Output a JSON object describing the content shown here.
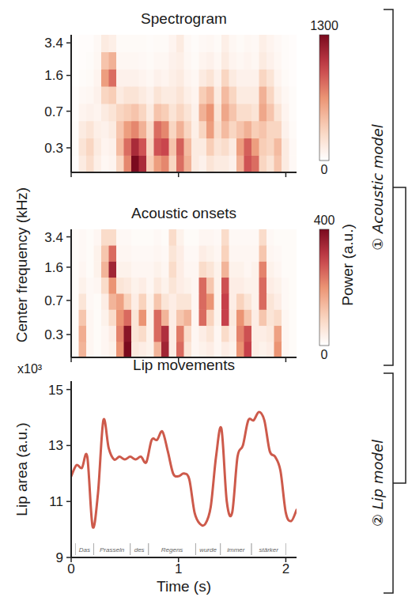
{
  "chart_data": [
    {
      "type": "heatmap",
      "title": "Spectrogram",
      "xlim": [
        0,
        2.1
      ],
      "xticks": [
        0,
        1,
        2
      ],
      "ylim": [
        0.17,
        4.1
      ],
      "yticks": [
        0.3,
        0.7,
        1.6,
        3.4
      ],
      "log": "y",
      "tick_labels": "y",
      "x_edges": [
        0,
        0.07,
        0.14,
        0.21,
        0.28,
        0.35,
        0.42,
        0.49,
        0.56,
        0.63,
        0.7,
        0.77,
        0.84,
        0.91,
        0.98,
        1.05,
        1.12,
        1.19,
        1.26,
        1.33,
        1.4,
        1.47,
        1.54,
        1.61,
        1.68,
        1.75,
        1.82,
        1.89,
        1.96,
        2.03,
        2.1
      ],
      "y_edges": [
        0.17,
        0.253,
        0.377,
        0.562,
        0.837,
        1.25,
        1.86,
        2.77,
        4.1
      ],
      "cells": [
        [
          20,
          150,
          250,
          120,
          60,
          80,
          300,
          700,
          1300,
          1100,
          350,
          600,
          700,
          300,
          800,
          500,
          150,
          100,
          200,
          150,
          150,
          100,
          500,
          900,
          800,
          300,
          200,
          400,
          150,
          50
        ],
        [
          30,
          200,
          300,
          150,
          80,
          100,
          450,
          800,
          1100,
          900,
          300,
          900,
          950,
          400,
          850,
          450,
          150,
          150,
          350,
          200,
          250,
          150,
          600,
          850,
          600,
          350,
          300,
          450,
          150,
          50
        ],
        [
          30,
          150,
          200,
          120,
          100,
          150,
          400,
          600,
          700,
          500,
          250,
          800,
          700,
          300,
          500,
          300,
          120,
          300,
          600,
          250,
          450,
          300,
          400,
          500,
          350,
          400,
          300,
          300,
          100,
          40
        ],
        [
          20,
          80,
          100,
          80,
          150,
          200,
          300,
          350,
          400,
          300,
          150,
          400,
          350,
          200,
          300,
          200,
          100,
          500,
          650,
          200,
          550,
          400,
          250,
          250,
          200,
          550,
          400,
          200,
          80,
          30
        ],
        [
          20,
          50,
          60,
          100,
          300,
          350,
          150,
          200,
          200,
          150,
          100,
          200,
          150,
          150,
          200,
          120,
          80,
          350,
          450,
          150,
          450,
          300,
          150,
          150,
          150,
          500,
          300,
          120,
          60,
          30
        ],
        [
          10,
          30,
          40,
          80,
          600,
          800,
          100,
          100,
          100,
          80,
          60,
          100,
          80,
          120,
          150,
          80,
          60,
          150,
          200,
          100,
          300,
          150,
          100,
          100,
          100,
          300,
          200,
          80,
          40,
          20
        ],
        [
          10,
          20,
          30,
          60,
          400,
          500,
          60,
          60,
          60,
          50,
          40,
          60,
          60,
          100,
          120,
          60,
          40,
          80,
          100,
          60,
          150,
          80,
          60,
          80,
          60,
          150,
          100,
          60,
          30,
          20
        ],
        [
          10,
          20,
          20,
          50,
          150,
          120,
          40,
          40,
          40,
          40,
          30,
          40,
          40,
          80,
          150,
          50,
          30,
          50,
          60,
          40,
          120,
          60,
          40,
          60,
          50,
          120,
          80,
          50,
          30,
          20
        ]
      ],
      "colorbar": {
        "range": [
          0,
          1300
        ],
        "ticks": [
          0,
          1300
        ]
      }
    },
    {
      "type": "heatmap",
      "title": "Acoustic onsets",
      "ylabel": "Center frequency (kHz)",
      "xlim": [
        0,
        2.1
      ],
      "xticks": [
        0,
        1,
        2
      ],
      "ylim": [
        0.17,
        4.1
      ],
      "yticks": [
        0.3,
        0.7,
        1.6,
        3.4
      ],
      "log": "y",
      "tick_labels": "y",
      "x_edges": [
        0,
        0.07,
        0.14,
        0.21,
        0.28,
        0.35,
        0.42,
        0.49,
        0.56,
        0.63,
        0.7,
        0.77,
        0.84,
        0.91,
        0.98,
        1.05,
        1.12,
        1.19,
        1.26,
        1.33,
        1.4,
        1.47,
        1.54,
        1.61,
        1.68,
        1.75,
        1.82,
        1.89,
        1.96,
        2.03,
        2.1
      ],
      "y_edges": [
        0.17,
        0.253,
        0.377,
        0.562,
        0.837,
        1.25,
        1.86,
        2.77,
        4.1
      ],
      "cells": [
        [
          10,
          150,
          20,
          10,
          20,
          30,
          200,
          400,
          50,
          40,
          30,
          150,
          350,
          40,
          250,
          60,
          20,
          30,
          40,
          20,
          40,
          30,
          200,
          300,
          40,
          30,
          40,
          200,
          20,
          10
        ],
        [
          10,
          160,
          20,
          10,
          20,
          40,
          220,
          380,
          60,
          80,
          30,
          250,
          330,
          40,
          230,
          80,
          20,
          40,
          60,
          20,
          80,
          40,
          220,
          280,
          40,
          40,
          50,
          180,
          20,
          10
        ],
        [
          10,
          120,
          20,
          10,
          30,
          80,
          200,
          250,
          60,
          200,
          30,
          250,
          150,
          40,
          120,
          150,
          20,
          250,
          100,
          30,
          300,
          50,
          200,
          120,
          40,
          120,
          60,
          80,
          20,
          10
        ],
        [
          10,
          60,
          15,
          10,
          40,
          150,
          180,
          100,
          40,
          100,
          30,
          120,
          60,
          40,
          60,
          60,
          20,
          250,
          200,
          30,
          300,
          40,
          100,
          60,
          30,
          250,
          60,
          40,
          15,
          10
        ],
        [
          10,
          30,
          15,
          20,
          80,
          200,
          60,
          50,
          30,
          40,
          20,
          50,
          30,
          60,
          40,
          30,
          20,
          250,
          120,
          30,
          280,
          40,
          40,
          30,
          30,
          250,
          40,
          30,
          15,
          10
        ],
        [
          10,
          20,
          10,
          30,
          150,
          350,
          30,
          30,
          20,
          20,
          20,
          30,
          20,
          80,
          40,
          20,
          20,
          80,
          60,
          30,
          150,
          30,
          30,
          20,
          30,
          220,
          30,
          20,
          10,
          10
        ],
        [
          10,
          15,
          10,
          30,
          120,
          250,
          20,
          20,
          15,
          15,
          15,
          20,
          15,
          60,
          40,
          15,
          15,
          40,
          30,
          20,
          100,
          20,
          20,
          20,
          20,
          120,
          20,
          15,
          10,
          10
        ],
        [
          10,
          15,
          10,
          20,
          80,
          80,
          15,
          15,
          10,
          10,
          10,
          15,
          10,
          80,
          30,
          10,
          10,
          20,
          20,
          15,
          80,
          15,
          15,
          15,
          15,
          80,
          15,
          10,
          10,
          10
        ]
      ],
      "colorbar": {
        "range": [
          0,
          400
        ],
        "ticks": [
          0,
          400
        ],
        "label": "Power (a.u.)"
      }
    },
    {
      "type": "line",
      "title": "Lip movements",
      "xlabel": "Time (s)",
      "ylabel": "Lip area (a.u.)",
      "yscale_label": "x10³",
      "xlim": [
        0,
        2.1
      ],
      "xticks": [
        0,
        1,
        2
      ],
      "ylim": [
        9,
        15.3
      ],
      "yticks": [
        9,
        11,
        13,
        15
      ],
      "color": "#cd5a4b",
      "x": [
        0,
        0.05,
        0.1,
        0.15,
        0.2,
        0.25,
        0.3,
        0.35,
        0.4,
        0.45,
        0.5,
        0.55,
        0.6,
        0.65,
        0.7,
        0.75,
        0.8,
        0.85,
        0.9,
        0.95,
        1,
        1.05,
        1.1,
        1.15,
        1.2,
        1.25,
        1.3,
        1.35,
        1.4,
        1.45,
        1.5,
        1.55,
        1.6,
        1.65,
        1.7,
        1.75,
        1.8,
        1.85,
        1.9,
        1.95,
        2,
        2.05,
        2.1
      ],
      "values": [
        11.9,
        12.3,
        12.2,
        12.6,
        10.1,
        11.3,
        13.9,
        12.9,
        12.5,
        12.6,
        12.5,
        12.6,
        12.5,
        12.6,
        12.4,
        13.2,
        13.2,
        13.5,
        12.8,
        12.0,
        11.9,
        12.0,
        11.8,
        10.6,
        10.2,
        10.2,
        10.8,
        12.6,
        13.6,
        11.0,
        10.6,
        12.6,
        13.0,
        13.9,
        13.9,
        14.2,
        13.9,
        12.8,
        12.6,
        12.1,
        10.6,
        10.3,
        10.7
      ],
      "annotations": [
        {
          "text": "Das",
          "start": 0.04,
          "end": 0.21
        },
        {
          "text": "Prasseln",
          "start": 0.21,
          "end": 0.55
        },
        {
          "text": "des",
          "start": 0.55,
          "end": 0.72
        },
        {
          "text": "Regens",
          "start": 0.72,
          "end": 1.16
        },
        {
          "text": "wurde",
          "start": 1.16,
          "end": 1.39
        },
        {
          "text": "immer",
          "start": 1.39,
          "end": 1.68
        },
        {
          "text": "stärker",
          "start": 1.68,
          "end": 2.0
        }
      ]
    }
  ],
  "brackets": [
    {
      "label": "① Acoustic model",
      "charts": [
        0,
        1
      ]
    },
    {
      "label": "② Lip model",
      "charts": [
        2
      ]
    }
  ]
}
